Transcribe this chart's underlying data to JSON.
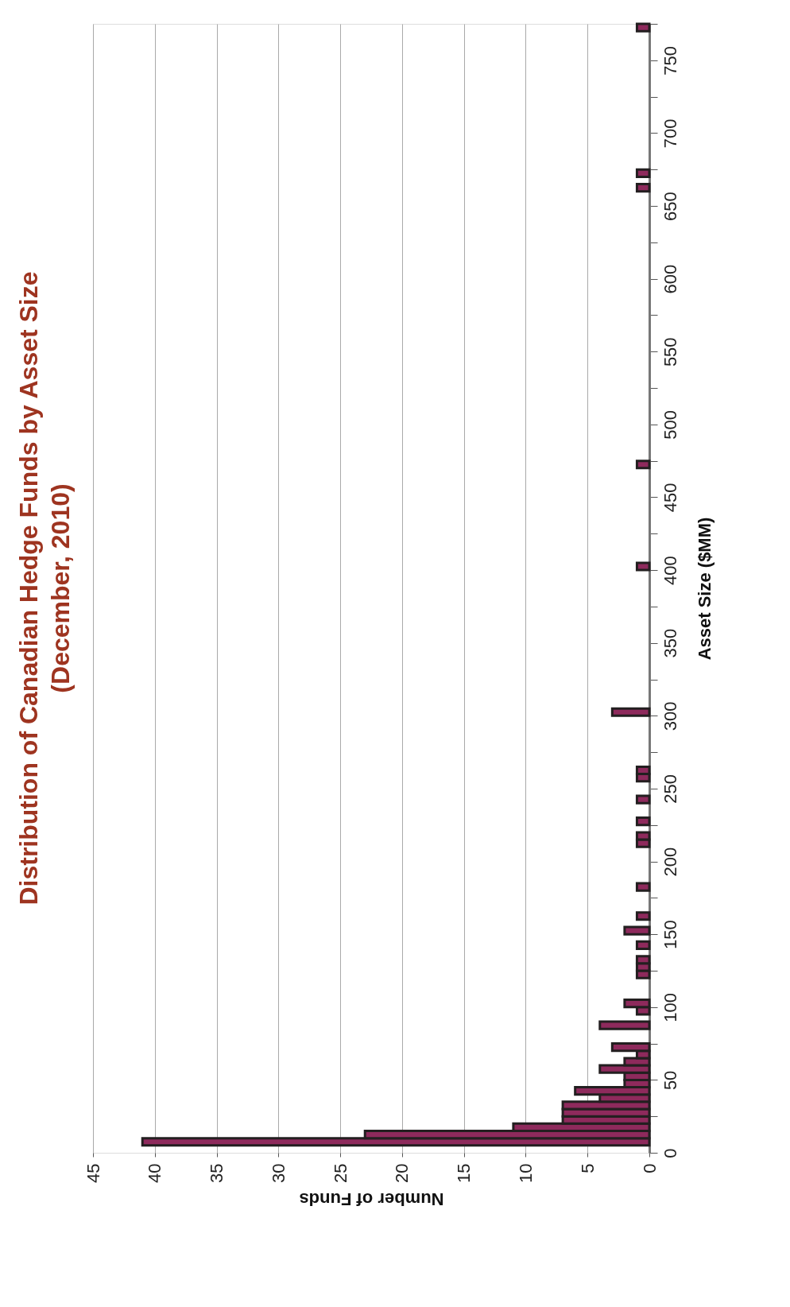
{
  "chart_data": {
    "type": "histogram",
    "orientation": "horizontal",
    "title": "Distribution of Canadian Hedge Funds by Asset Size\n(December, 2010)",
    "xlabel": "Number of Funds",
    "ylabel": "Asset Size ($MM)",
    "bins": [
      0,
      5,
      10,
      15,
      20,
      25,
      30,
      35,
      40,
      45,
      50,
      55,
      60,
      65,
      70,
      75,
      80,
      85,
      90,
      95,
      100,
      105,
      110,
      115,
      120,
      125,
      130,
      135,
      140,
      145,
      150,
      155,
      160,
      165,
      170,
      175,
      180,
      185,
      190,
      195,
      200,
      205,
      210,
      215,
      220,
      225,
      230,
      235,
      240,
      245,
      250,
      255,
      260,
      265,
      270,
      275,
      280,
      285,
      290,
      295,
      300,
      305,
      310,
      315,
      320,
      325,
      330,
      335,
      340,
      345,
      350,
      355,
      360,
      365,
      370,
      375,
      380,
      385,
      390,
      395,
      400,
      405,
      410,
      415,
      420,
      425,
      430,
      435,
      440,
      445,
      450,
      455,
      460,
      465,
      470,
      475,
      480,
      485,
      490,
      495,
      500,
      505,
      510,
      515,
      520,
      525,
      530,
      535,
      540,
      545,
      550,
      555,
      560,
      565,
      570,
      575,
      580,
      585,
      590,
      595,
      600,
      605,
      610,
      615,
      620,
      625,
      630,
      635,
      640,
      645,
      650,
      655,
      660,
      665,
      670,
      675,
      680,
      685,
      690,
      695,
      700,
      705,
      710,
      715,
      720,
      725,
      730,
      735,
      740,
      745,
      750,
      755,
      760,
      765,
      770,
      775
    ],
    "values": [
      0,
      41,
      23,
      11,
      7,
      7,
      7,
      4,
      6,
      2,
      2,
      4,
      2,
      1,
      3,
      0,
      0,
      4,
      0,
      1,
      2,
      0,
      0,
      0,
      1,
      1,
      1,
      0,
      1,
      0,
      2,
      0,
      1,
      0,
      0,
      0,
      1,
      0,
      0,
      0,
      0,
      0,
      1,
      1,
      0,
      1,
      0,
      0,
      1,
      0,
      0,
      1,
      1,
      0,
      0,
      0,
      0,
      0,
      0,
      0,
      3,
      0,
      0,
      0,
      0,
      0,
      0,
      0,
      0,
      0,
      0,
      0,
      0,
      0,
      0,
      0,
      0,
      0,
      0,
      0,
      1,
      0,
      0,
      0,
      0,
      0,
      0,
      0,
      0,
      0,
      0,
      0,
      0,
      0,
      1,
      0,
      0,
      0,
      0,
      0,
      0,
      0,
      0,
      0,
      0,
      0,
      0,
      0,
      0,
      0,
      0,
      0,
      0,
      0,
      0,
      0,
      0,
      0,
      0,
      0,
      0,
      0,
      0,
      0,
      0,
      0,
      0,
      0,
      0,
      0,
      0,
      0,
      1,
      0,
      1,
      0,
      0,
      0,
      0,
      0,
      0,
      0,
      0,
      0,
      0,
      0,
      0,
      0,
      0,
      0,
      0,
      0,
      0,
      0,
      1
    ],
    "color": "#8e2a5c",
    "xlim": [
      45,
      0
    ],
    "xticks": [
      0,
      5,
      10,
      15,
      20,
      25,
      30,
      35,
      40,
      45
    ],
    "ylim": [
      0,
      775
    ],
    "yticks": [
      0,
      {
        "value": 25,
        "label": null
      },
      50,
      {
        "value": 75,
        "label": null
      },
      100,
      {
        "value": 125,
        "label": null
      },
      150,
      {
        "value": 175,
        "label": null
      },
      200,
      {
        "value": 225,
        "label": null
      },
      250,
      {
        "value": 275,
        "label": null
      },
      300,
      {
        "value": 325,
        "label": null
      },
      350,
      {
        "value": 375,
        "label": null
      },
      400,
      {
        "value": 425,
        "label": null
      },
      450,
      {
        "value": 475,
        "label": null
      },
      500,
      {
        "value": 525,
        "label": null
      },
      550,
      {
        "value": 575,
        "label": null
      },
      600,
      {
        "value": 625,
        "label": null
      },
      650,
      {
        "value": 675,
        "label": null
      },
      700,
      {
        "value": 725,
        "label": null
      },
      750,
      {
        "value": 775,
        "label": null
      }
    ],
    "grid": "x"
  }
}
